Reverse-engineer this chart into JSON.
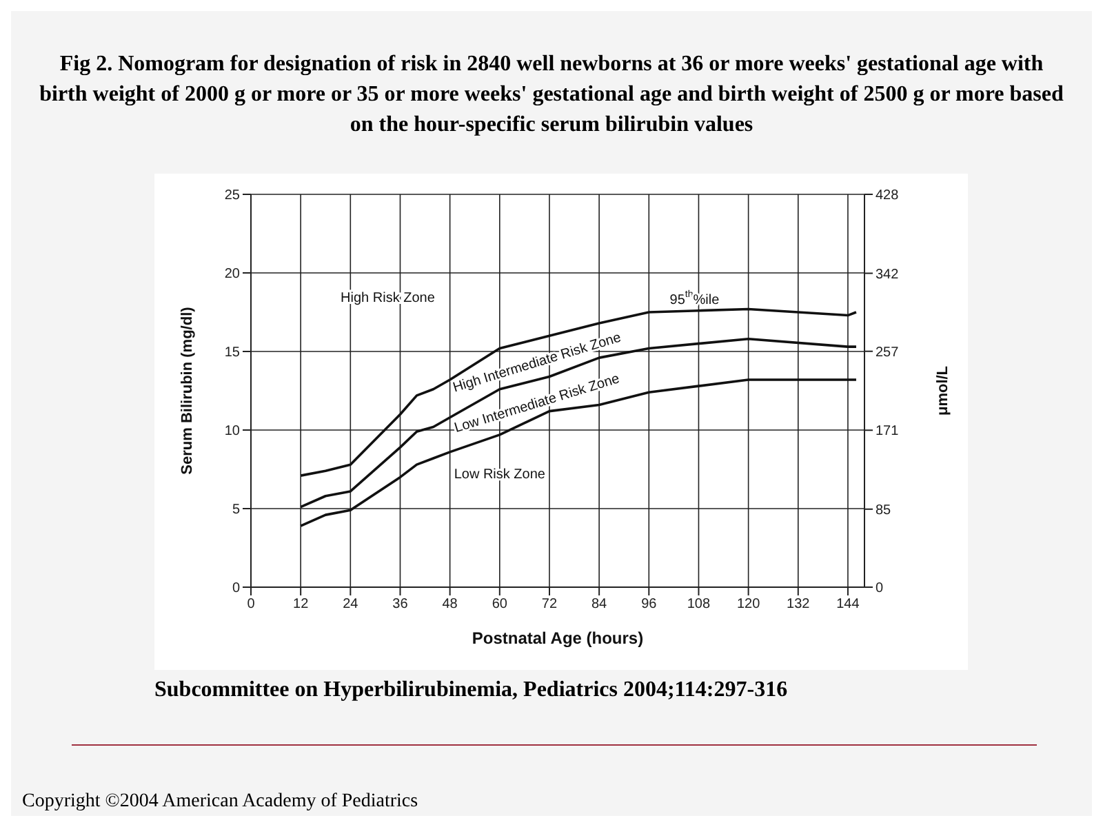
{
  "chart_data": {
    "type": "line",
    "title": "Fig 2. Nomogram for designation of risk in 2840 well newborns at 36 or more weeks' gestational age with birth weight of 2000 g or more or 35 or more weeks' gestational age and birth weight of 2500 g or more based on the hour-specific serum bilirubin values",
    "xlabel": "Postnatal Age (hours)",
    "ylabel": "Serum Bilirubin (mg/dl)",
    "y2label": "μmol/L",
    "xlim": [
      0,
      148
    ],
    "xticks": [
      0,
      12,
      24,
      36,
      48,
      60,
      72,
      84,
      96,
      108,
      120,
      132,
      144
    ],
    "ylim": [
      0,
      25
    ],
    "yticks": [
      0,
      5,
      10,
      15,
      20,
      25
    ],
    "y2lim": [
      0,
      428
    ],
    "y2ticks": [
      0,
      85,
      171,
      257,
      342,
      428
    ],
    "grid": true,
    "marker": "none",
    "line_style": "solid",
    "series": [
      {
        "color": "#111111",
        "x": [
          12,
          18,
          24,
          36,
          40,
          44,
          48,
          60,
          72,
          84,
          96,
          108,
          120,
          132,
          144,
          146
        ],
        "values": [
          7.1,
          7.4,
          7.8,
          11.0,
          12.2,
          12.6,
          13.2,
          15.2,
          16.0,
          16.8,
          17.5,
          17.6,
          17.7,
          17.5,
          17.3,
          17.5
        ]
      },
      {
        "color": "#111111",
        "x": [
          12,
          18,
          24,
          36,
          40,
          44,
          48,
          60,
          72,
          84,
          96,
          120,
          144,
          146
        ],
        "values": [
          5.1,
          5.8,
          6.1,
          8.9,
          9.9,
          10.2,
          10.8,
          12.6,
          13.4,
          14.6,
          15.2,
          15.8,
          15.3,
          15.3
        ]
      },
      {
        "color": "#111111",
        "x": [
          12,
          18,
          24,
          36,
          40,
          44,
          48,
          60,
          72,
          84,
          96,
          108,
          120,
          144,
          146
        ],
        "values": [
          3.9,
          4.6,
          4.9,
          7.0,
          7.8,
          8.2,
          8.6,
          9.7,
          11.2,
          11.6,
          12.4,
          12.8,
          13.2,
          13.2,
          13.2
        ]
      }
    ],
    "annotations": [
      "High Risk Zone",
      "95$^{th}$%ile",
      "High Intermediate Risk Zone",
      "Low Intermediate Risk Zone",
      "Low Risk Zone",
      "Subcommittee on Hyperbilirubinemia,   Pediatrics 2004;114:297-316",
      "Copyright ©2004 American Academy of Pediatrics"
    ]
  }
}
